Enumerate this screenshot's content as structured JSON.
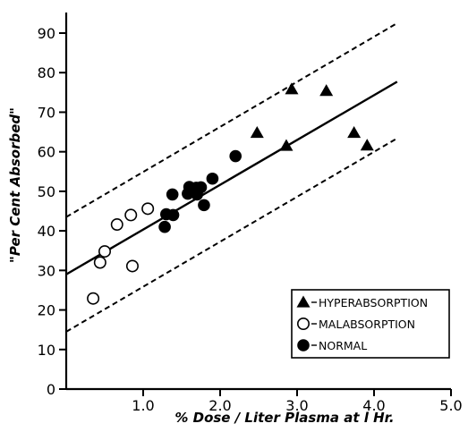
{
  "chart_data": {
    "type": "scatter",
    "xlabel": "% Dose / Liter Plasma at l Hr.",
    "ylabel": "\"Per Cent Absorbed\"",
    "xlim": [
      0,
      5.0
    ],
    "ylim": [
      0,
      95
    ],
    "x_ticks": [
      "1.0",
      "2.0",
      "3.0",
      "4.0",
      "5.0"
    ],
    "x_tick_values": [
      1.0,
      2.0,
      3.0,
      4.0,
      5.0
    ],
    "y_ticks": [
      "0",
      "10",
      "20",
      "30",
      "40",
      "50",
      "60",
      "70",
      "80",
      "90"
    ],
    "y_tick_values": [
      0,
      10,
      20,
      30,
      40,
      50,
      60,
      70,
      80,
      90
    ],
    "grid": false,
    "legend_position": "bottom-right",
    "series": [
      {
        "name": "HYPERABSORPTION",
        "marker": "triangle",
        "points": [
          [
            2.48,
            64.8
          ],
          [
            2.86,
            61.5
          ],
          [
            2.93,
            75.8
          ],
          [
            3.38,
            75.4
          ],
          [
            3.74,
            64.8
          ],
          [
            3.91,
            61.6
          ]
        ]
      },
      {
        "name": "MALABSORPTION",
        "marker": "open-circle",
        "points": [
          [
            0.35,
            22.9
          ],
          [
            0.44,
            32.0
          ],
          [
            0.5,
            34.8
          ],
          [
            0.66,
            41.6
          ],
          [
            0.86,
            31.1
          ],
          [
            0.84,
            44.0
          ],
          [
            1.06,
            45.6
          ]
        ]
      },
      {
        "name": "NORMAL",
        "marker": "filled-circle",
        "points": [
          [
            1.28,
            41.0
          ],
          [
            1.3,
            44.2
          ],
          [
            1.39,
            44.0
          ],
          [
            1.38,
            49.2
          ],
          [
            1.58,
            49.4
          ],
          [
            1.6,
            51.1
          ],
          [
            1.69,
            50.9
          ],
          [
            1.75,
            51.0
          ],
          [
            1.7,
            49.2
          ],
          [
            1.79,
            46.5
          ],
          [
            1.9,
            53.2
          ],
          [
            2.2,
            58.9
          ]
        ]
      }
    ],
    "lines": [
      {
        "style": "solid",
        "from": [
          0,
          29.0
        ],
        "to": [
          4.3,
          77.7
        ]
      },
      {
        "style": "dashed",
        "from": [
          0,
          43.5
        ],
        "to": [
          4.3,
          92.5
        ]
      },
      {
        "style": "dashed",
        "from": [
          0,
          14.5
        ],
        "to": [
          4.3,
          63.4
        ]
      }
    ],
    "colors": {
      "ink": "#000000",
      "background": "#ffffff"
    }
  }
}
